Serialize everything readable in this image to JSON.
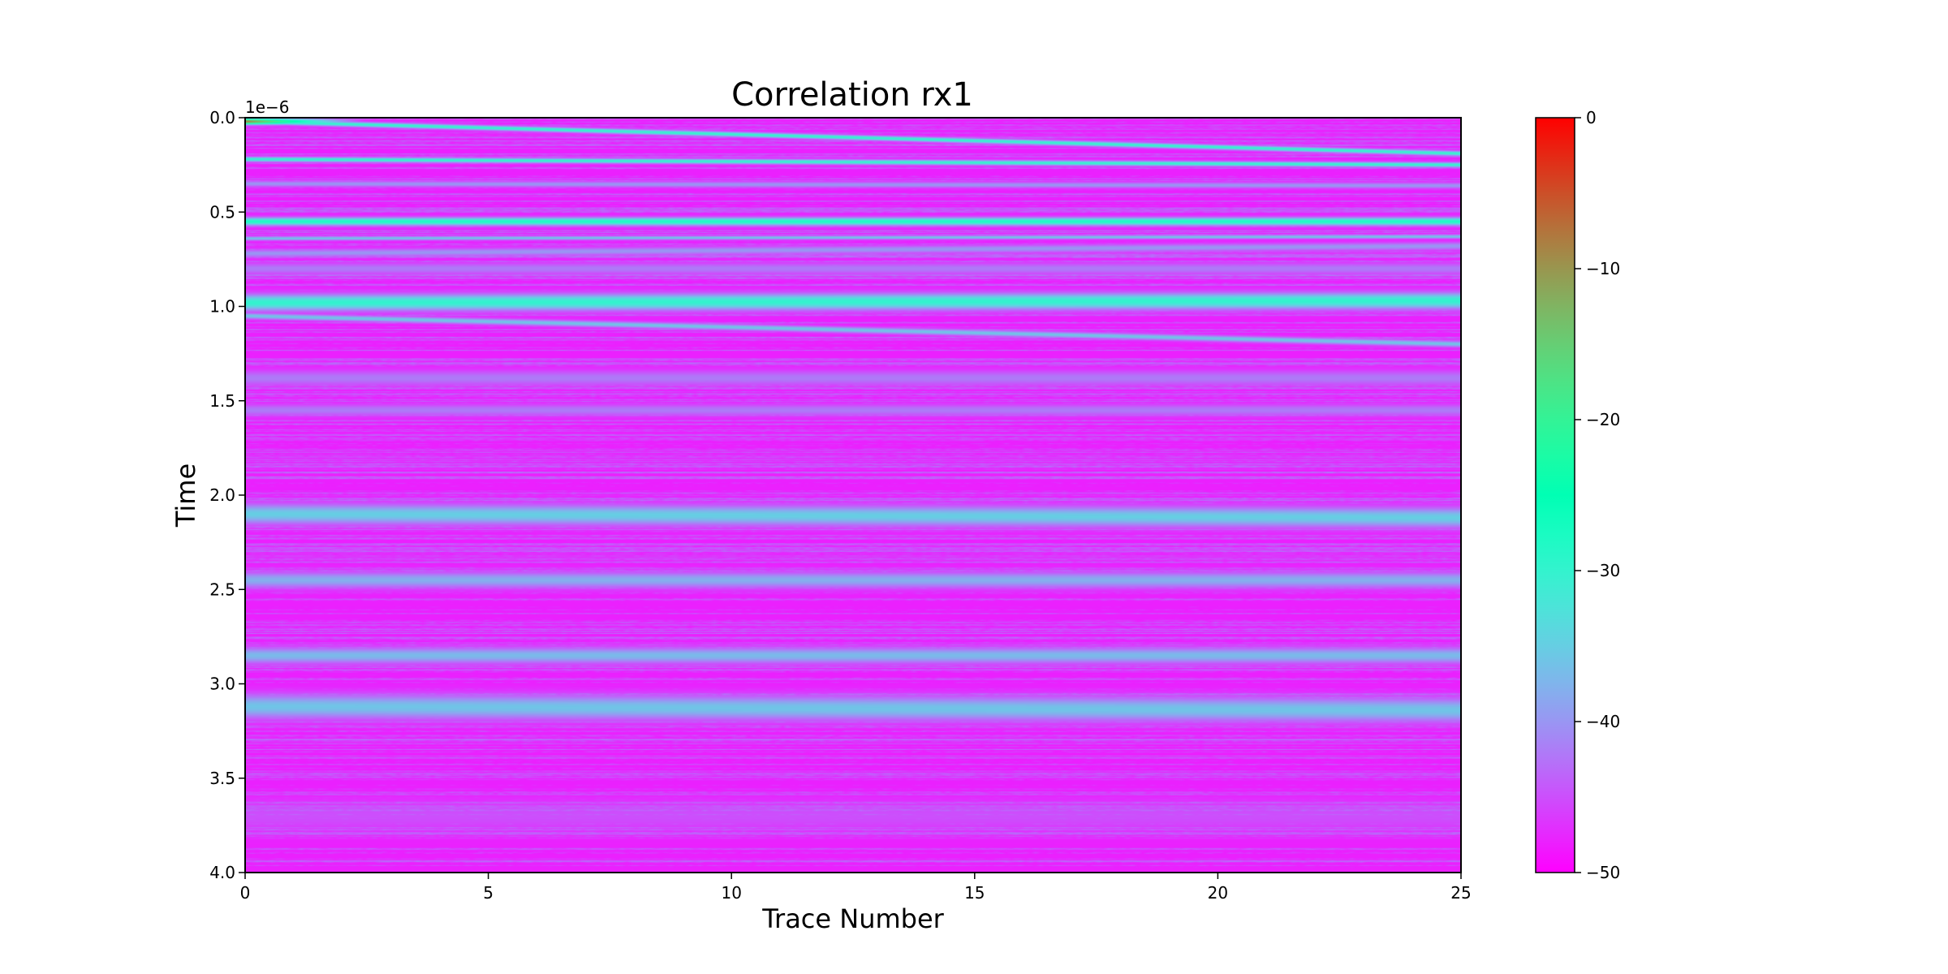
{
  "chart_data": {
    "type": "heatmap",
    "title": "Correlation rx1",
    "xlabel": "Trace Number",
    "ylabel": "Time",
    "y_offset_label": "1e−6",
    "xlim": [
      0,
      25
    ],
    "ylim": [
      4.0,
      0.0
    ],
    "y_inverted": true,
    "x_ticks": [
      0,
      5,
      10,
      15,
      20,
      25
    ],
    "x_tick_labels": [
      "0",
      "5",
      "10",
      "15",
      "20",
      "25"
    ],
    "y_ticks": [
      0.0,
      0.5,
      1.0,
      1.5,
      2.0,
      2.5,
      3.0,
      3.5,
      4.0
    ],
    "y_tick_labels": [
      "0.0",
      "0.5",
      "1.0",
      "1.5",
      "2.0",
      "2.5",
      "3.0",
      "3.5",
      "4.0"
    ],
    "colormap": "rainbow",
    "colorbar": {
      "vmin": -50,
      "vmax": 0,
      "ticks": [
        0,
        -10,
        -20,
        -30,
        -40,
        -50
      ],
      "tick_labels": [
        "0",
        "−10",
        "−20",
        "−30",
        "−40",
        "−50"
      ]
    },
    "background_value": -48,
    "bands": [
      {
        "t0": 0.02,
        "t1": 0.19,
        "value": -30,
        "width": 0.012
      },
      {
        "t0": 0.22,
        "t1": 0.25,
        "value": -30,
        "width": 0.012
      },
      {
        "t0": 0.35,
        "t1": 0.36,
        "value": -40,
        "width": 0.015
      },
      {
        "t0": 0.55,
        "t1": 0.55,
        "value": -28,
        "width": 0.02
      },
      {
        "t0": 0.64,
        "t1": 0.63,
        "value": -36,
        "width": 0.01
      },
      {
        "t0": 0.72,
        "t1": 0.68,
        "value": -40,
        "width": 0.02
      },
      {
        "t0": 0.8,
        "t1": 0.8,
        "value": -42,
        "width": 0.03
      },
      {
        "t0": 0.98,
        "t1": 0.97,
        "value": -30,
        "width": 0.04
      },
      {
        "t0": 1.05,
        "t1": 1.2,
        "value": -36,
        "width": 0.015
      },
      {
        "t0": 1.38,
        "t1": 1.38,
        "value": -42,
        "width": 0.04
      },
      {
        "t0": 1.55,
        "t1": 1.55,
        "value": -42,
        "width": 0.03
      },
      {
        "t0": 2.1,
        "t1": 2.12,
        "value": -35,
        "width": 0.05
      },
      {
        "t0": 2.45,
        "t1": 2.45,
        "value": -38,
        "width": 0.04
      },
      {
        "t0": 2.85,
        "t1": 2.85,
        "value": -37,
        "width": 0.04
      },
      {
        "t0": 3.12,
        "t1": 3.14,
        "value": -36,
        "width": 0.06
      },
      {
        "t0": 3.7,
        "t1": 3.7,
        "value": -45,
        "width": 0.08
      }
    ],
    "direct_wave": {
      "t": 0.02,
      "x_end": 2.5,
      "value": -8
    }
  }
}
